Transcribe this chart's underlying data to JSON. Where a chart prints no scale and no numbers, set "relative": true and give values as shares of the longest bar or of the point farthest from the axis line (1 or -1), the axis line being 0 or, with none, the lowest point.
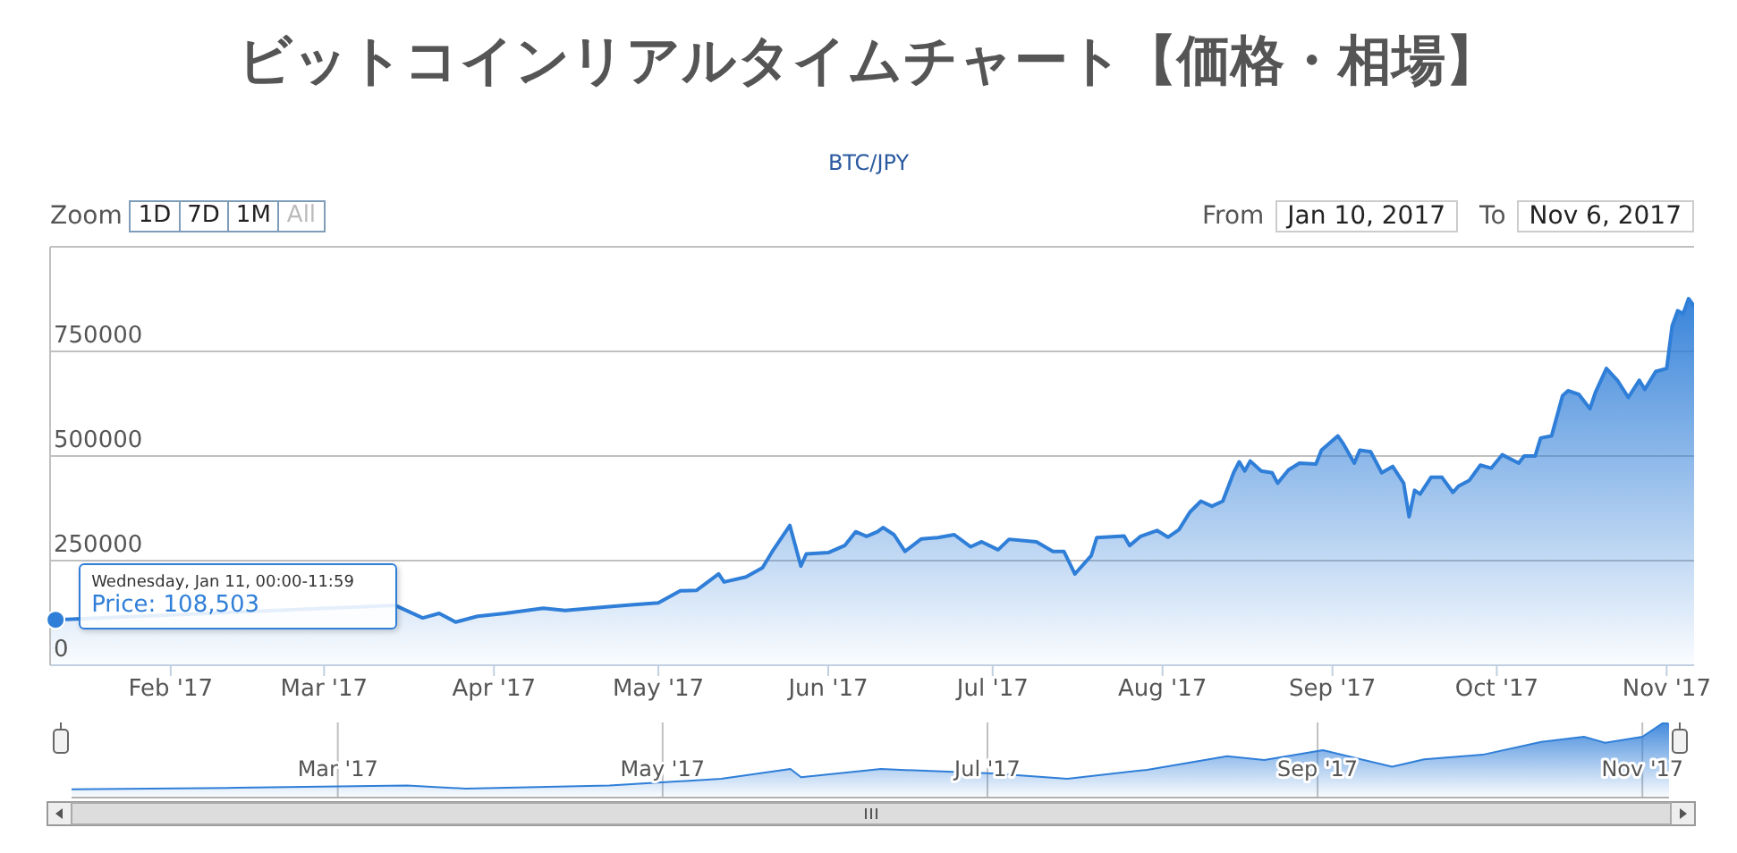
{
  "chart_data": [
    {
      "type": "area",
      "title": "ビットコインリアルタイムチャート【価格・相場】",
      "subtitle": "BTC/JPY",
      "color": "#2f7ed8",
      "grid": "y",
      "legend": false,
      "marker": "none",
      "annotations": [
        "Zoom",
        "1D",
        "7D",
        "1M",
        "All",
        "From",
        "Jan 10, 2017",
        "To",
        "Nov 6, 2017",
        "Wednesday, Jan 11, 00:00-11:59",
        {
          "text": "Price: 108,503",
          "x": "2017-01-11",
          "y": 108503
        }
      ],
      "xlim": [
        "2017-01-10",
        "2017-11-06"
      ],
      "xticks": [
        {
          "value": "2017-02-01",
          "label": "Feb '17"
        },
        {
          "value": "2017-03-01",
          "label": "Mar '17"
        },
        {
          "value": "2017-04-01",
          "label": "Apr '17"
        },
        {
          "value": "2017-05-01",
          "label": "May '17"
        },
        {
          "value": "2017-06-01",
          "label": "Jun '17"
        },
        {
          "value": "2017-07-01",
          "label": "Jul '17"
        },
        {
          "value": "2017-08-01",
          "label": "Aug '17"
        },
        {
          "value": "2017-09-01",
          "label": "Sep '17"
        },
        {
          "value": "2017-10-01",
          "label": "Oct '17"
        },
        {
          "value": "2017-11-01",
          "label": "Nov '17"
        }
      ],
      "ylim": [
        0,
        1000000
      ],
      "yticks": [
        0,
        250000,
        500000,
        750000,
        {
          "value": 1000000,
          "label": null
        }
      ],
      "x": [
        "2017-01-10",
        "2017-01-11",
        "2017-01-16",
        "2017-02-10",
        "2017-02-25",
        "2017-03-07",
        "2017-03-14",
        "2017-03-19",
        "2017-03-22",
        "2017-03-25",
        "2017-03-29",
        "2017-04-03",
        "2017-04-10",
        "2017-04-14",
        "2017-04-21",
        "2017-04-26",
        "2017-05-01",
        "2017-05-05",
        "2017-05-08",
        "2017-05-12",
        "2017-05-13",
        "2017-05-17",
        "2017-05-20",
        "2017-05-22",
        "2017-05-25",
        "2017-05-27",
        "2017-05-28",
        "2017-06-01",
        "2017-06-04",
        "2017-06-06",
        "2017-06-08",
        "2017-06-10",
        "2017-06-11",
        "2017-06-13",
        "2017-06-15",
        "2017-06-18",
        "2017-06-21",
        "2017-06-24",
        "2017-06-27",
        "2017-06-29",
        "2017-07-02",
        "2017-07-04",
        "2017-07-09",
        "2017-07-12",
        "2017-07-14",
        "2017-07-16",
        "2017-07-19",
        "2017-07-20",
        "2017-07-25",
        "2017-07-26",
        "2017-07-28",
        "2017-07-31",
        "2017-08-02",
        "2017-08-04",
        "2017-08-06",
        "2017-08-08",
        "2017-08-10",
        "2017-08-12",
        "2017-08-14",
        "2017-08-15",
        "2017-08-16",
        "2017-08-17",
        "2017-08-19",
        "2017-08-21",
        "2017-08-22",
        "2017-08-24",
        "2017-08-26",
        "2017-08-29",
        "2017-08-30",
        "2017-09-02",
        "2017-09-03",
        "2017-09-05",
        "2017-09-06",
        "2017-09-08",
        "2017-09-10",
        "2017-09-12",
        "2017-09-14",
        "2017-09-15",
        "2017-09-16",
        "2017-09-17",
        "2017-09-19",
        "2017-09-21",
        "2017-09-23",
        "2017-09-24",
        "2017-09-26",
        "2017-09-28",
        "2017-09-30",
        "2017-10-02",
        "2017-10-05",
        "2017-10-06",
        "2017-10-08",
        "2017-10-09",
        "2017-10-11",
        "2017-10-13",
        "2017-10-14",
        "2017-10-16",
        "2017-10-18",
        "2017-10-19",
        "2017-10-21",
        "2017-10-23",
        "2017-10-25",
        "2017-10-27",
        "2017-10-28",
        "2017-10-30",
        "2017-11-01",
        "2017-11-02",
        "2017-11-03",
        "2017-11-04",
        "2017-11-05",
        "2017-11-06"
      ],
      "values": [
        95000,
        108503,
        null,
        null,
        null,
        null,
        143000,
        113000,
        124000,
        103000,
        117000,
        124000,
        136000,
        131000,
        139000,
        144000,
        149000,
        178000,
        179000,
        218000,
        199000,
        211000,
        233000,
        276000,
        334000,
        237000,
        266000,
        269000,
        286000,
        319000,
        308000,
        319000,
        329000,
        312000,
        272000,
        302000,
        305000,
        312000,
        283000,
        295000,
        276000,
        301000,
        295000,
        272000,
        272000,
        218000,
        262000,
        305000,
        309000,
        286000,
        308000,
        322000,
        306000,
        324000,
        366000,
        392000,
        380000,
        392000,
        461000,
        486000,
        464000,
        488000,
        464000,
        460000,
        435000,
        467000,
        483000,
        481000,
        514000,
        548000,
        529000,
        483000,
        514000,
        510000,
        460000,
        475000,
        435000,
        355000,
        418000,
        409000,
        449000,
        449000,
        413000,
        428000,
        442000,
        478000,
        471000,
        503000,
        483000,
        500000,
        500000,
        543000,
        548000,
        644000,
        656000,
        647000,
        613000,
        652000,
        709000,
        681000,
        640000,
        681000,
        659000,
        702000,
        709000,
        811000,
        847000,
        840000,
        876000,
        858000
      ]
    },
    {
      "type": "area",
      "relative": true,
      "color": "#2f7ed8",
      "grid": "x",
      "tick_labels": "x",
      "marker": "none",
      "xlim": [
        "2017-01-10",
        "2017-11-06"
      ],
      "xticks": [
        {
          "value": "2017-03-01",
          "label": "Mar '17"
        },
        {
          "value": "2017-05-01",
          "label": "May '17"
        },
        {
          "value": "2017-07-01",
          "label": "Jul '17"
        },
        {
          "value": "2017-09-01",
          "label": "Sep '17"
        },
        {
          "value": "2017-11-01",
          "label": "Nov '17"
        }
      ],
      "x": [
        "2017-01-10",
        "2017-02-10",
        "2017-03-14",
        "2017-03-25",
        "2017-04-21",
        "2017-05-12",
        "2017-05-25",
        "2017-05-27",
        "2017-06-11",
        "2017-07-02",
        "2017-07-16",
        "2017-07-31",
        "2017-08-15",
        "2017-08-22",
        "2017-09-02",
        "2017-09-15",
        "2017-09-21",
        "2017-10-02",
        "2017-10-13",
        "2017-10-21",
        "2017-10-25",
        "2017-11-01",
        "2017-11-05",
        "2017-11-06"
      ],
      "values": [
        0.11,
        0.13,
        0.16,
        0.12,
        0.16,
        0.25,
        0.38,
        0.27,
        0.38,
        0.32,
        0.25,
        0.37,
        0.55,
        0.5,
        0.63,
        0.41,
        0.51,
        0.57,
        0.74,
        0.81,
        0.73,
        0.81,
        1,
        0.98
      ]
    }
  ]
}
